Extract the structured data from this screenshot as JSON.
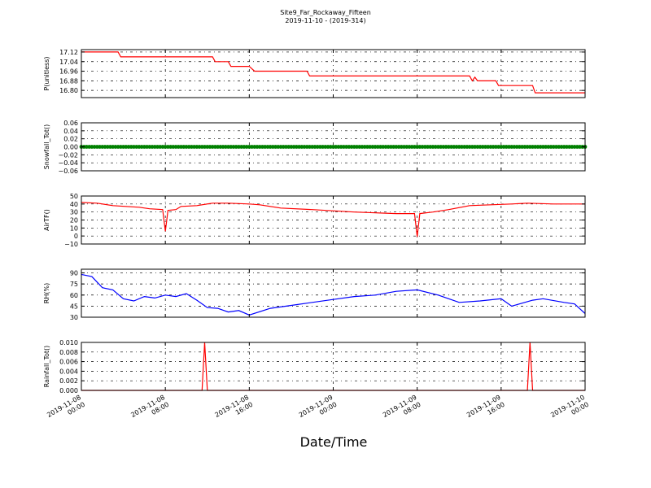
{
  "title": "Site9_Far_Rockaway_Fifteen",
  "subtitle": "2019-11-10 - (2019-314)",
  "xlabel": "Date/Time",
  "x_ticks": [
    {
      "t": 0,
      "line1": "2019-11-08",
      "line2": "00:00"
    },
    {
      "t": 8,
      "line1": "2019-11-08",
      "line2": "08:00"
    },
    {
      "t": 16,
      "line1": "2019-11-08",
      "line2": "16:00"
    },
    {
      "t": 24,
      "line1": "2019-11-09",
      "line2": "00:00"
    },
    {
      "t": 32,
      "line1": "2019-11-09",
      "line2": "08:00"
    },
    {
      "t": 40,
      "line1": "2019-11-09",
      "line2": "16:00"
    },
    {
      "t": 48,
      "line1": "2019-11-10",
      "line2": "00:00"
    }
  ],
  "chart_data": [
    {
      "type": "line",
      "ylabel": "P(unitless)",
      "color": "#ff0000",
      "ylim": [
        16.74,
        17.14
      ],
      "yticks": [
        "17.12",
        "17.04",
        "16.96",
        "16.88",
        "16.80"
      ],
      "ytick_values": [
        17.12,
        17.04,
        16.96,
        16.88,
        16.8
      ],
      "x": [
        "2019-11-08 00:00",
        "2019-11-08 03:30",
        "2019-11-08 03:45",
        "2019-11-08 09:00",
        "2019-11-08 12:30",
        "2019-11-08 12:45",
        "2019-11-08 14:00",
        "2019-11-08 14:15",
        "2019-11-08 16:00",
        "2019-11-08 16:30",
        "2019-11-08 21:30",
        "2019-11-08 21:45",
        "2019-11-09 08:00",
        "2019-11-09 13:00",
        "2019-11-09 13:15",
        "2019-11-09 13:30",
        "2019-11-09 13:45",
        "2019-11-09 15:30",
        "2019-11-09 15:45",
        "2019-11-09 19:00",
        "2019-11-09 19:15",
        "2019-11-10 00:00"
      ],
      "values": [
        17.12,
        17.12,
        17.08,
        17.08,
        17.08,
        17.04,
        17.04,
        17.0,
        17.0,
        16.96,
        16.96,
        16.92,
        16.92,
        16.92,
        16.88,
        16.91,
        16.88,
        16.88,
        16.84,
        16.84,
        16.78,
        16.78
      ]
    },
    {
      "type": "scatter",
      "ylabel": "Snowfall_Tot()",
      "color": "#008000",
      "ylim": [
        -0.06,
        0.06
      ],
      "yticks": [
        "0.06",
        "0.04",
        "0.02",
        "0.00",
        "−0.02",
        "−0.04",
        "−0.06"
      ],
      "ytick_values": [
        0.06,
        0.04,
        0.02,
        0.0,
        -0.02,
        -0.04,
        -0.06
      ],
      "x_range": [
        "2019-11-08 00:00",
        "2019-11-10 00:00"
      ],
      "constant_value": 0.0
    },
    {
      "type": "line",
      "ylabel": "AirTF()",
      "color": "#ff0000",
      "ylim": [
        -10,
        50
      ],
      "yticks": [
        "50",
        "40",
        "30",
        "20",
        "10",
        "0",
        "−10"
      ],
      "ytick_values": [
        50,
        40,
        30,
        20,
        10,
        0,
        -10
      ],
      "x": [
        "2019-11-08 00:00",
        "2019-11-08 01:30",
        "2019-11-08 03:00",
        "2019-11-08 05:30",
        "2019-11-08 06:30",
        "2019-11-08 07:45",
        "2019-11-08 08:00",
        "2019-11-08 08:15",
        "2019-11-08 09:00",
        "2019-11-08 09:30",
        "2019-11-08 11:00",
        "2019-11-08 12:30",
        "2019-11-08 14:00",
        "2019-11-08 16:00",
        "2019-11-08 17:00",
        "2019-11-08 19:00",
        "2019-11-08 22:00",
        "2019-11-09 02:00",
        "2019-11-09 06:00",
        "2019-11-09 07:45",
        "2019-11-09 08:00",
        "2019-11-09 08:15",
        "2019-11-09 09:30",
        "2019-11-09 11:00",
        "2019-11-09 13:00",
        "2019-11-09 15:00",
        "2019-11-09 17:00",
        "2019-11-09 18:30",
        "2019-11-09 21:00",
        "2019-11-10 00:00"
      ],
      "values": [
        42,
        41,
        38,
        36,
        34,
        33,
        6,
        32,
        33,
        37,
        38,
        41,
        41,
        40,
        39,
        35,
        33,
        30,
        28,
        28,
        -1,
        28,
        30,
        33,
        38,
        39,
        40,
        41,
        40,
        40
      ]
    },
    {
      "type": "line",
      "ylabel": "RH(%)",
      "color": "#0000ff",
      "ylim": [
        30,
        95
      ],
      "yticks": [
        "90",
        "75",
        "60",
        "45",
        "30"
      ],
      "ytick_values": [
        90,
        75,
        60,
        45,
        30
      ],
      "x": [
        "2019-11-08 00:00",
        "2019-11-08 01:00",
        "2019-11-08 02:00",
        "2019-11-08 03:00",
        "2019-11-08 04:00",
        "2019-11-08 05:00",
        "2019-11-08 06:00",
        "2019-11-08 07:00",
        "2019-11-08 08:00",
        "2019-11-08 09:00",
        "2019-11-08 10:00",
        "2019-11-08 11:00",
        "2019-11-08 12:00",
        "2019-11-08 13:00",
        "2019-11-08 14:00",
        "2019-11-08 15:00",
        "2019-11-08 16:00",
        "2019-11-08 18:00",
        "2019-11-08 20:00",
        "2019-11-08 22:00",
        "2019-11-09 00:00",
        "2019-11-09 02:00",
        "2019-11-09 04:00",
        "2019-11-09 06:00",
        "2019-11-09 08:00",
        "2019-11-09 10:00",
        "2019-11-09 11:00",
        "2019-11-09 12:00",
        "2019-11-09 14:00",
        "2019-11-09 16:00",
        "2019-11-09 17:00",
        "2019-11-09 19:00",
        "2019-11-09 20:00",
        "2019-11-09 22:00",
        "2019-11-09 23:00",
        "2019-11-10 00:00"
      ],
      "values": [
        88,
        85,
        70,
        67,
        55,
        52,
        58,
        56,
        60,
        58,
        62,
        53,
        43,
        42,
        37,
        39,
        33,
        42,
        46,
        50,
        54,
        58,
        60,
        65,
        67,
        60,
        55,
        50,
        52,
        55,
        45,
        53,
        55,
        50,
        48,
        35
      ]
    },
    {
      "type": "line",
      "ylabel": "Rainfall_Tot()",
      "color": "#ff0000",
      "ylim": [
        0.0,
        0.01
      ],
      "yticks": [
        "0.010",
        "0.008",
        "0.006",
        "0.004",
        "0.002",
        "0.000"
      ],
      "ytick_values": [
        0.01,
        0.008,
        0.006,
        0.004,
        0.002,
        0.0
      ],
      "x": [
        "2019-11-08 00:00",
        "2019-11-08 11:30",
        "2019-11-08 11:45",
        "2019-11-08 12:00",
        "2019-11-09 18:30",
        "2019-11-09 18:45",
        "2019-11-09 19:00",
        "2019-11-10 00:00"
      ],
      "values": [
        0,
        0,
        0.01,
        0,
        0,
        0.01,
        0,
        0
      ]
    }
  ]
}
